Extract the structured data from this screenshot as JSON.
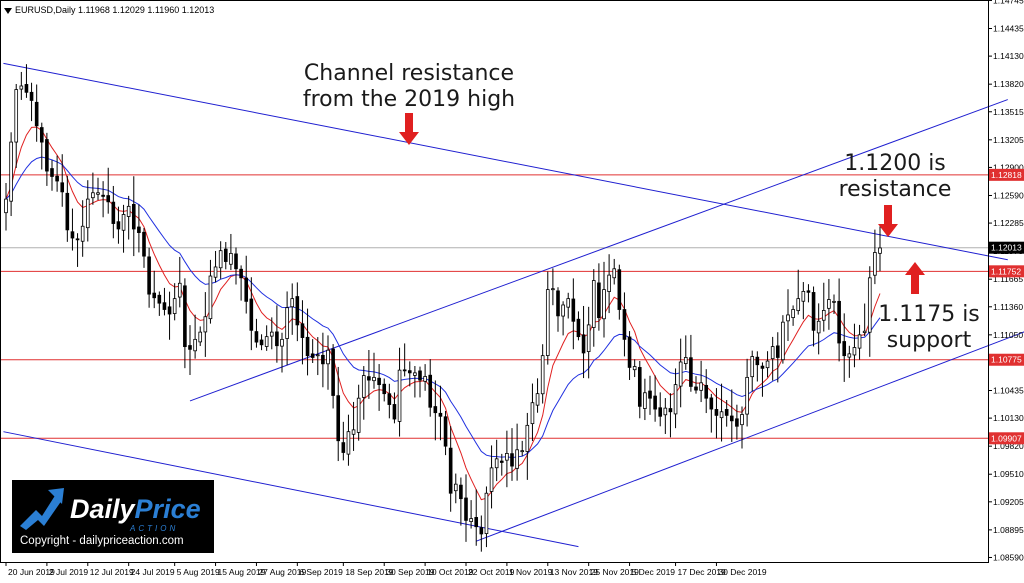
{
  "header": {
    "title": "EURUSD,Daily  1.11968 1.12029 1.11960 1.12013"
  },
  "logo": {
    "brand_a": "Daily",
    "brand_b": "Price",
    "brand_c": "ACTION",
    "copyright": "Copyright - dailypriceaction.com"
  },
  "colors": {
    "candle": "#000000",
    "support_line": "#e03030",
    "trend_line": "#1f1fd0",
    "ema_fast": "#e02020",
    "ema_slow": "#2030e0",
    "arrow": "#e02020",
    "current_line": "#b0b0b0"
  },
  "chart_data": {
    "type": "candlestick",
    "symbol": "EURUSD",
    "timeframe": "Daily",
    "ylim": [
      1.0854,
      1.1475
    ],
    "x_ticks": [
      "20 Jun 2019",
      "2 Jul 2019",
      "12 Jul 2019",
      "24 Jul 2019",
      "5 Aug 2019",
      "15 Aug 2019",
      "27 Aug 2019",
      "6 Sep 2019",
      "18 Sep 2019",
      "30 Sep 2019",
      "10 Oct 2019",
      "22 Oct 2019",
      "1 Nov 2019",
      "13 Nov 2019",
      "25 Nov 2019",
      "5 Dec 2019",
      "17 Dec 2019",
      "30 Dec 2019"
    ],
    "y_ticks": [
      "1.14745",
      "1.14435",
      "1.14130",
      "1.13820",
      "1.13515",
      "1.13205",
      "1.12900",
      "1.12590",
      "1.12285",
      "1.11975",
      "1.11665",
      "1.11360",
      "1.11050",
      "1.10745",
      "1.10435",
      "1.10130",
      "1.09820",
      "1.09510",
      "1.09205",
      "1.08895",
      "1.08590"
    ],
    "price_labels": [
      {
        "label": "1.12818",
        "value": 1.12818,
        "kind": "line"
      },
      {
        "label": "1.12013",
        "value": 1.12013,
        "kind": "current"
      },
      {
        "label": "1.11752",
        "value": 1.11752,
        "kind": "line"
      },
      {
        "label": "1.10775",
        "value": 1.10775,
        "kind": "line"
      },
      {
        "label": "1.09907",
        "value": 1.09907,
        "kind": "line"
      }
    ],
    "annotations": [
      {
        "lines": [
          "Channel resistance",
          "from the 2019 high"
        ],
        "arrow": "down"
      },
      {
        "lines": [
          "1.1200 is",
          "resistance"
        ],
        "arrow": "down"
      },
      {
        "lines": [
          "1.1175 is",
          "support"
        ],
        "arrow": "up"
      }
    ],
    "closes": [
      1.1255,
      1.1318,
      1.1376,
      1.138,
      1.1373,
      1.1364,
      1.1336,
      1.1318,
      1.1286,
      1.128,
      1.1275,
      1.1263,
      1.1221,
      1.1212,
      1.121,
      1.1225,
      1.1255,
      1.1262,
      1.1262,
      1.1258,
      1.1252,
      1.1228,
      1.1222,
      1.1238,
      1.1247,
      1.1222,
      1.1218,
      1.1192,
      1.115,
      1.1146,
      1.114,
      1.1133,
      1.1128,
      1.1145,
      1.1162,
      1.1092,
      1.1089,
      1.11,
      1.1108,
      1.1125,
      1.117,
      1.118,
      1.1198,
      1.1186,
      1.1195,
      1.1178,
      1.1168,
      1.1142,
      1.111,
      1.1097,
      1.1094,
      1.1103,
      1.1108,
      1.1093,
      1.11,
      1.1135,
      1.1145,
      1.1116,
      1.1102,
      1.1082,
      1.108,
      1.1083,
      1.1073,
      1.1088,
      1.1038,
      1.0988,
      1.0975,
      1.0998,
      1.1,
      1.1035,
      1.106,
      1.1055,
      1.1058,
      1.105,
      1.104,
      1.1028,
      1.1012,
      1.1066,
      1.1066,
      1.1063,
      1.1063,
      1.1055,
      1.1059,
      1.1025,
      1.1019,
      1.1015,
      1.0982,
      1.093,
      1.094,
      1.0924,
      1.09,
      1.0902,
      1.0893,
      1.0885,
      1.093,
      1.0958,
      1.0968,
      1.0964,
      1.0974,
      1.096,
      1.0978,
      1.0977,
      1.1005,
      1.103,
      1.104,
      1.1082,
      1.1155,
      1.1156,
      1.1126,
      1.1138,
      1.1145,
      1.112,
      1.1103,
      1.1085,
      1.1116,
      1.1165,
      1.1124,
      1.1155,
      1.1171,
      1.1178,
      1.1133,
      1.11,
      1.1069,
      1.107,
      1.1026,
      1.1041,
      1.1035,
      1.1023,
      1.1015,
      1.1024,
      1.102,
      1.105,
      1.1075,
      1.108,
      1.1048,
      1.1044,
      1.1052,
      1.1035,
      1.1023,
      1.1016,
      1.102,
      1.1016,
      1.101,
      1.1004,
      1.1017,
      1.1058,
      1.1081,
      1.1072,
      1.1068,
      1.1076,
      1.1092,
      1.108,
      1.1119,
      1.1127,
      1.1133,
      1.1145,
      1.1153,
      1.1152,
      1.111,
      1.112,
      1.1132,
      1.1144,
      1.1142,
      1.1096,
      1.1082,
      1.1084,
      1.1091,
      1.1105,
      1.1109,
      1.1168,
      1.1196,
      1.1201
    ]
  }
}
